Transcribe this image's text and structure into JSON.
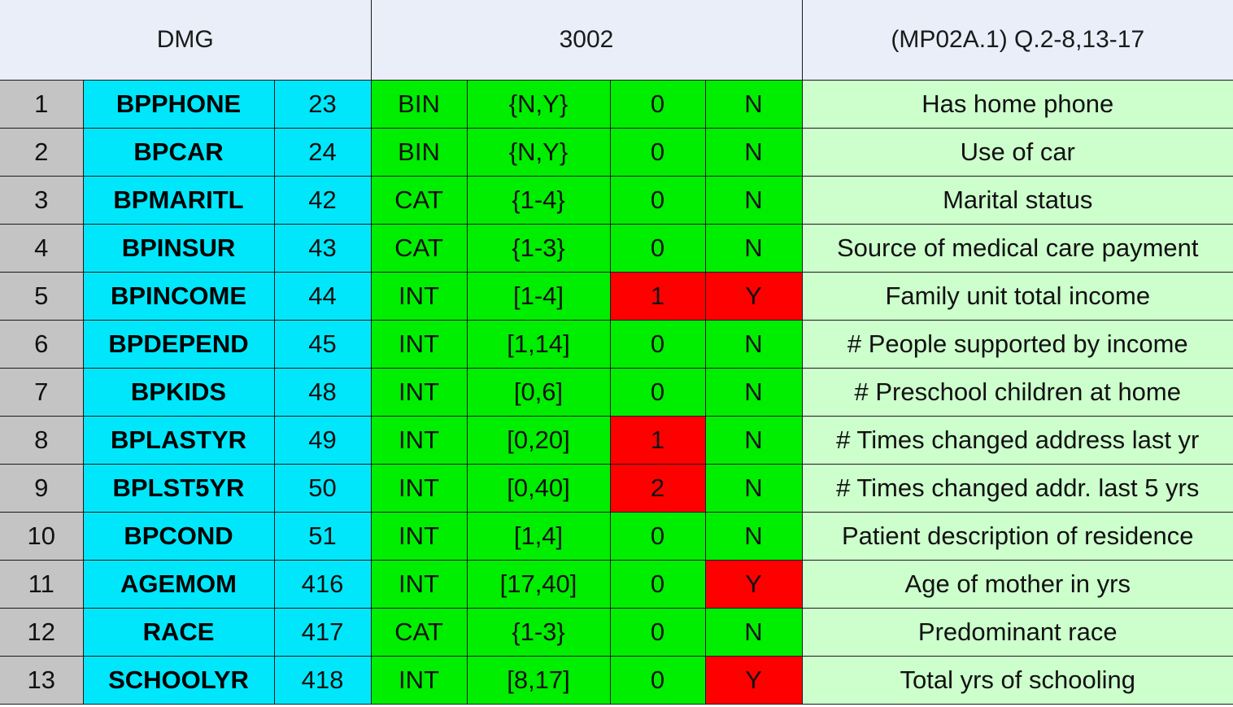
{
  "header": {
    "group": "DMG",
    "code": "3002",
    "reference": "(MP02A.1) Q.2-8,13-17"
  },
  "colors": {
    "index_bg": "#c4c4c4",
    "name_bg": "#00e7fc",
    "ok_bg": "#00ee00",
    "flag_bg": "#ff0000",
    "desc_bg": "#ccffcc",
    "header_bg": "#e9eef9"
  },
  "rows": [
    {
      "idx": "1",
      "name": "BPPHONE",
      "col": "23",
      "type": "BIN",
      "range": "{N,Y}",
      "count": "0",
      "flag": "N",
      "desc": "Has home phone"
    },
    {
      "idx": "2",
      "name": "BPCAR",
      "col": "24",
      "type": "BIN",
      "range": "{N,Y}",
      "count": "0",
      "flag": "N",
      "desc": "Use of car"
    },
    {
      "idx": "3",
      "name": "BPMARITL",
      "col": "42",
      "type": "CAT",
      "range": "{1-4}",
      "count": "0",
      "flag": "N",
      "desc": "Marital status"
    },
    {
      "idx": "4",
      "name": "BPINSUR",
      "col": "43",
      "type": "CAT",
      "range": "{1-3}",
      "count": "0",
      "flag": "N",
      "desc": "Source of medical care payment"
    },
    {
      "idx": "5",
      "name": "BPINCOME",
      "col": "44",
      "type": "INT",
      "range": "[1-4]",
      "count": "1",
      "flag": "Y",
      "desc": "Family unit total income"
    },
    {
      "idx": "6",
      "name": "BPDEPEND",
      "col": "45",
      "type": "INT",
      "range": "[1,14]",
      "count": "0",
      "flag": "N",
      "desc": "# People supported by income"
    },
    {
      "idx": "7",
      "name": "BPKIDS",
      "col": "48",
      "type": "INT",
      "range": "[0,6]",
      "count": "0",
      "flag": "N",
      "desc": "# Preschool children at home"
    },
    {
      "idx": "8",
      "name": "BPLASTYR",
      "col": "49",
      "type": "INT",
      "range": "[0,20]",
      "count": "1",
      "flag": "N",
      "desc": "# Times changed address last yr"
    },
    {
      "idx": "9",
      "name": "BPLST5YR",
      "col": "50",
      "type": "INT",
      "range": "[0,40]",
      "count": "2",
      "flag": "N",
      "desc": "# Times changed addr. last 5 yrs"
    },
    {
      "idx": "10",
      "name": "BPCOND",
      "col": "51",
      "type": "INT",
      "range": "[1,4]",
      "count": "0",
      "flag": "N",
      "desc": "Patient description of residence"
    },
    {
      "idx": "11",
      "name": "AGEMOM",
      "col": "416",
      "type": "INT",
      "range": "[17,40]",
      "count": "0",
      "flag": "Y",
      "desc": "Age of mother in yrs"
    },
    {
      "idx": "12",
      "name": "RACE",
      "col": "417",
      "type": "CAT",
      "range": "{1-3}",
      "count": "0",
      "flag": "N",
      "desc": "Predominant race"
    },
    {
      "idx": "13",
      "name": "SCHOOLYR",
      "col": "418",
      "type": "INT",
      "range": "[8,17]",
      "count": "0",
      "flag": "Y",
      "desc": "Total yrs of schooling"
    }
  ]
}
